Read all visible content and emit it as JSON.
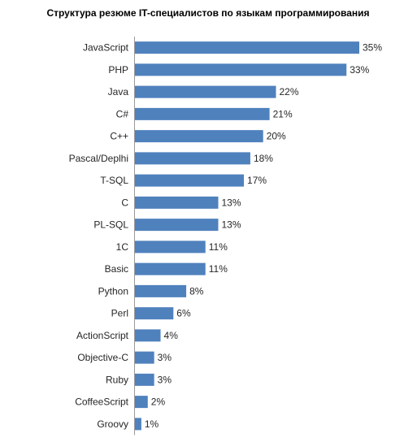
{
  "chart_data": {
    "type": "bar",
    "orientation": "horizontal",
    "title": "Структура резюме IT-специалистов по языкам программирования",
    "categories": [
      "JavaScript",
      "PHP",
      "Java",
      "C#",
      "C++",
      "Pascal/Deplhi",
      "T-SQL",
      "C",
      "PL-SQL",
      "1C",
      "Basic",
      "Python",
      "Perl",
      "ActionScript",
      "Objective-C",
      "Ruby",
      "CoffeeScript",
      "Groovy"
    ],
    "values": [
      35,
      33,
      22,
      21,
      20,
      18,
      17,
      13,
      13,
      11,
      11,
      8,
      6,
      4,
      3,
      3,
      2,
      1
    ],
    "value_labels": [
      "35%",
      "33%",
      "22%",
      "21%",
      "20%",
      "18%",
      "17%",
      "13%",
      "13%",
      "11%",
      "11%",
      "8%",
      "6%",
      "4%",
      "3%",
      "3%",
      "2%",
      "1%"
    ],
    "unit": "%",
    "xlim": [
      0,
      35
    ],
    "grid": false,
    "legend": "none",
    "bar_color": "#4f81bd"
  }
}
